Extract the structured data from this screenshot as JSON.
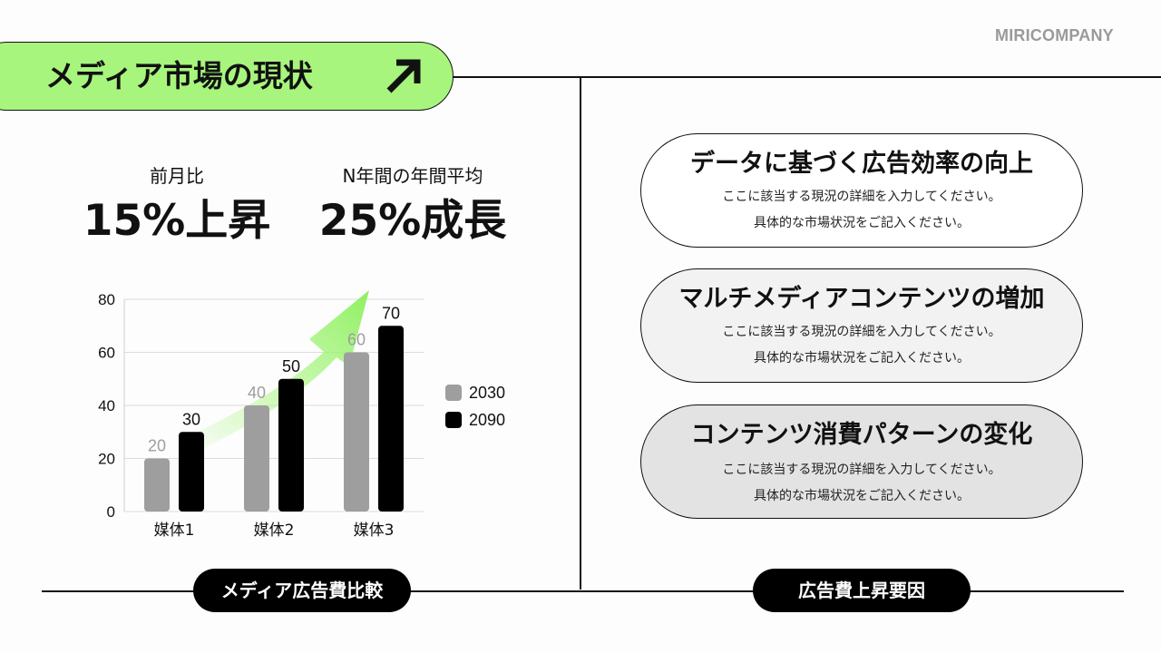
{
  "brand": "MIRICOMPANY",
  "title": "メディア市場の現状",
  "icons": {
    "title_arrow": "arrow-up-right-icon",
    "growth_arrow": "growth-arrow-icon"
  },
  "colors": {
    "accent": "#a7f57d",
    "series_2030": "#9e9e9e",
    "series_2090": "#000000"
  },
  "stats": [
    {
      "label": "前月比",
      "value": "15%上昇"
    },
    {
      "label": "N年間の年間平均",
      "value": "25%成長"
    }
  ],
  "chart_data": {
    "type": "bar",
    "categories": [
      "媒体1",
      "媒体2",
      "媒体3"
    ],
    "series": [
      {
        "name": "2030",
        "values": [
          20,
          40,
          60
        ],
        "color": "#9e9e9e"
      },
      {
        "name": "2090",
        "values": [
          30,
          50,
          70
        ],
        "color": "#000000"
      }
    ],
    "yticks": [
      0,
      20,
      40,
      60,
      80
    ],
    "ylim": [
      0,
      80
    ],
    "grid": true,
    "legend": "right",
    "annotation": "green upward trend arrow"
  },
  "left_footer_label": "メディア広告費比較",
  "right_footer_label": "広告費上昇要因",
  "factors": [
    {
      "title": "データに基づく広告効率の向上",
      "lines": [
        "ここに該当する現況の詳細を入力してください。",
        "具体的な市場状況をご記入ください。"
      ],
      "fill": "#ffffff"
    },
    {
      "title": "マルチメディアコンテンツの増加",
      "lines": [
        "ここに該当する現況の詳細を入力してください。",
        "具体的な市場状況をご記入ください。"
      ],
      "fill": "#f2f2f2"
    },
    {
      "title": "コンテンツ消費パターンの変化",
      "lines": [
        "ここに該当する現況の詳細を入力してください。",
        "具体的な市場状況をご記入ください。"
      ],
      "fill": "#e3e3e3"
    }
  ]
}
